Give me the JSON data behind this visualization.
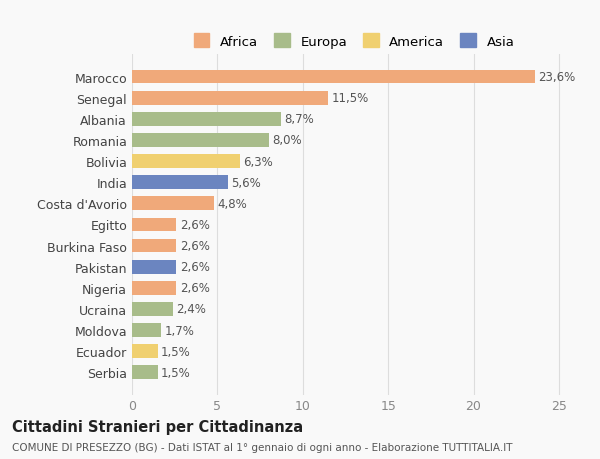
{
  "countries": [
    "Marocco",
    "Senegal",
    "Albania",
    "Romania",
    "Bolivia",
    "India",
    "Costa d'Avorio",
    "Egitto",
    "Burkina Faso",
    "Pakistan",
    "Nigeria",
    "Ucraina",
    "Moldova",
    "Ecuador",
    "Serbia"
  ],
  "values": [
    23.6,
    11.5,
    8.7,
    8.0,
    6.3,
    5.6,
    4.8,
    2.6,
    2.6,
    2.6,
    2.6,
    2.4,
    1.7,
    1.5,
    1.5
  ],
  "labels": [
    "23,6%",
    "11,5%",
    "8,7%",
    "8,0%",
    "6,3%",
    "5,6%",
    "4,8%",
    "2,6%",
    "2,6%",
    "2,6%",
    "2,6%",
    "2,4%",
    "1,7%",
    "1,5%",
    "1,5%"
  ],
  "continents": [
    "Africa",
    "Africa",
    "Europa",
    "Europa",
    "America",
    "Asia",
    "Africa",
    "Africa",
    "Africa",
    "Asia",
    "Africa",
    "Europa",
    "Europa",
    "America",
    "Europa"
  ],
  "colors": {
    "Africa": "#F0A97A",
    "Europa": "#A8BC8A",
    "America": "#F0D070",
    "Asia": "#6B85C0"
  },
  "legend_order": [
    "Africa",
    "Europa",
    "America",
    "Asia"
  ],
  "title": "Cittadini Stranieri per Cittadinanza",
  "subtitle": "COMUNE DI PRESEZZO (BG) - Dati ISTAT al 1° gennaio di ogni anno - Elaborazione TUTTITALIA.IT",
  "xlim": [
    0,
    26
  ],
  "xticks": [
    0,
    5,
    10,
    15,
    20,
    25
  ],
  "background_color": "#f9f9f9",
  "bar_height": 0.65
}
